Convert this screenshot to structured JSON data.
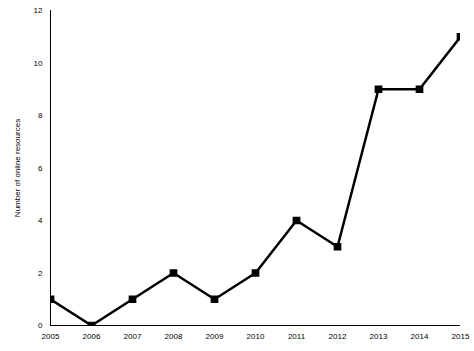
{
  "chart_data": {
    "type": "line",
    "y_label": "Number of online resources",
    "x": [
      2005,
      2006,
      2007,
      2008,
      2009,
      2010,
      2011,
      2012,
      2013,
      2014,
      2015
    ],
    "values": [
      1,
      0,
      1,
      2,
      1,
      2,
      4,
      3,
      9,
      9,
      11
    ],
    "color": "#000000",
    "marker": "square",
    "xlim": [
      2005,
      2015
    ],
    "xticks": [
      2005,
      2006,
      2007,
      2008,
      2009,
      2010,
      2011,
      2012,
      2013,
      2014,
      2015
    ],
    "ylim": [
      0,
      12
    ],
    "yticks": [
      0,
      2,
      4,
      6,
      8,
      10,
      12
    ],
    "grid": false
  }
}
